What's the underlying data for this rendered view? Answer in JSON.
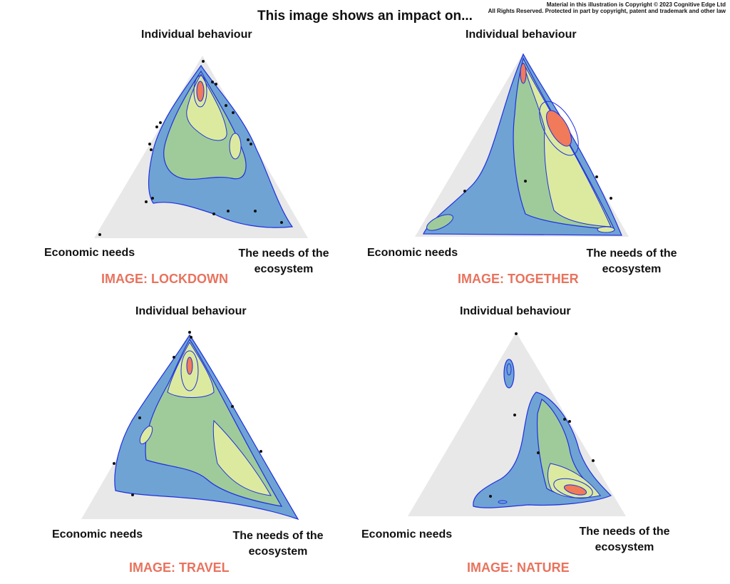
{
  "copyright": {
    "line1": "Material in this illustration is Copyright © 2023  Cognitive Edge Ltd",
    "line2": "All Rights Reserved. Protected in part by copyright, patent and trademark and other law"
  },
  "title": "This image shows an impact on...",
  "labels": {
    "top": "Individual behaviour",
    "left": "Economic needs",
    "right": "The needs of the ecosystem"
  },
  "panels": [
    {
      "caption": "IMAGE: LOCKDOWN"
    },
    {
      "caption": "IMAGE: TOGETHER"
    },
    {
      "caption": "IMAGE: TRAVEL"
    },
    {
      "caption": "IMAGE: NATURE"
    }
  ],
  "colors": {
    "triangle": "#e8e8e8",
    "outer": "#6fa3d4",
    "mid": "#9fcb9a",
    "inner": "#dceaa0",
    "hot": "#f07a5a",
    "contour": "#1f2fe0",
    "caption": "#e8735e"
  }
}
